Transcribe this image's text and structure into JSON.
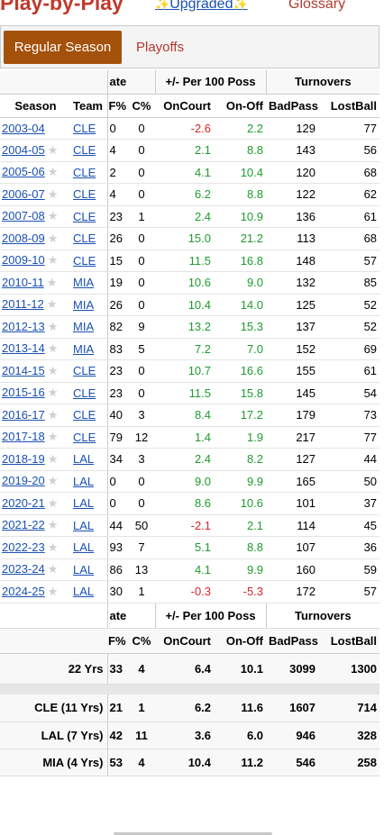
{
  "header": {
    "title": "Play-by-Play",
    "upgraded": "Upgraded",
    "upgraded_spark": "✨",
    "glossary": "Glossary"
  },
  "tabs": {
    "regular": "Regular Season",
    "playoffs": "Playoffs"
  },
  "groups": {
    "rate": "ate",
    "plusminus": "+/- Per 100 Poss",
    "turnovers": "Turnovers"
  },
  "columns": {
    "season": "Season",
    "team": "Team",
    "f_pct": "F%",
    "c_pct": "C%",
    "on_court": "OnCourt",
    "on_off": "On-Off",
    "bad_pass": "BadPass",
    "lost_ball": "LostBall"
  },
  "rows": [
    {
      "season": "2003-04",
      "star": false,
      "team": "CLE",
      "f": "0",
      "c": "0",
      "on": "-2.6",
      "onoff": "2.2",
      "bp": "129",
      "lb": "77"
    },
    {
      "season": "2004-05",
      "star": true,
      "team": "CLE",
      "f": "4",
      "c": "0",
      "on": "2.1",
      "onoff": "8.8",
      "bp": "143",
      "lb": "56"
    },
    {
      "season": "2005-06",
      "star": true,
      "team": "CLE",
      "f": "2",
      "c": "0",
      "on": "4.1",
      "onoff": "10.4",
      "bp": "120",
      "lb": "68"
    },
    {
      "season": "2006-07",
      "star": true,
      "team": "CLE",
      "f": "4",
      "c": "0",
      "on": "6.2",
      "onoff": "8.8",
      "bp": "122",
      "lb": "62"
    },
    {
      "season": "2007-08",
      "star": true,
      "team": "CLE",
      "f": "23",
      "c": "1",
      "on": "2.4",
      "onoff": "10.9",
      "bp": "136",
      "lb": "61"
    },
    {
      "season": "2008-09",
      "star": true,
      "team": "CLE",
      "f": "26",
      "c": "0",
      "on": "15.0",
      "onoff": "21.2",
      "bp": "113",
      "lb": "68"
    },
    {
      "season": "2009-10",
      "star": true,
      "team": "CLE",
      "f": "15",
      "c": "0",
      "on": "11.5",
      "onoff": "16.8",
      "bp": "148",
      "lb": "57"
    },
    {
      "season": "2010-11",
      "star": true,
      "team": "MIA",
      "f": "19",
      "c": "0",
      "on": "10.6",
      "onoff": "9.0",
      "bp": "132",
      "lb": "85"
    },
    {
      "season": "2011-12",
      "star": true,
      "team": "MIA",
      "f": "26",
      "c": "0",
      "on": "10.4",
      "onoff": "14.0",
      "bp": "125",
      "lb": "52"
    },
    {
      "season": "2012-13",
      "star": true,
      "team": "MIA",
      "f": "82",
      "c": "9",
      "on": "13.2",
      "onoff": "15.3",
      "bp": "137",
      "lb": "52"
    },
    {
      "season": "2013-14",
      "star": true,
      "team": "MIA",
      "f": "83",
      "c": "5",
      "on": "7.2",
      "onoff": "7.0",
      "bp": "152",
      "lb": "69"
    },
    {
      "season": "2014-15",
      "star": true,
      "team": "CLE",
      "f": "23",
      "c": "0",
      "on": "10.7",
      "onoff": "16.6",
      "bp": "155",
      "lb": "61"
    },
    {
      "season": "2015-16",
      "star": true,
      "team": "CLE",
      "f": "23",
      "c": "0",
      "on": "11.5",
      "onoff": "15.8",
      "bp": "145",
      "lb": "54"
    },
    {
      "season": "2016-17",
      "star": true,
      "team": "CLE",
      "f": "40",
      "c": "3",
      "on": "8.4",
      "onoff": "17.2",
      "bp": "179",
      "lb": "73"
    },
    {
      "season": "2017-18",
      "star": true,
      "team": "CLE",
      "f": "79",
      "c": "12",
      "on": "1.4",
      "onoff": "1.9",
      "bp": "217",
      "lb": "77"
    },
    {
      "season": "2018-19",
      "star": true,
      "team": "LAL",
      "f": "34",
      "c": "3",
      "on": "2.4",
      "onoff": "8.2",
      "bp": "127",
      "lb": "44"
    },
    {
      "season": "2019-20",
      "star": true,
      "team": "LAL",
      "f": "0",
      "c": "0",
      "on": "9.0",
      "onoff": "9.9",
      "bp": "165",
      "lb": "50"
    },
    {
      "season": "2020-21",
      "star": true,
      "team": "LAL",
      "f": "0",
      "c": "0",
      "on": "8.6",
      "onoff": "10.6",
      "bp": "101",
      "lb": "37"
    },
    {
      "season": "2021-22",
      "star": true,
      "team": "LAL",
      "f": "44",
      "c": "50",
      "on": "-2.1",
      "onoff": "2.1",
      "bp": "114",
      "lb": "45"
    },
    {
      "season": "2022-23",
      "star": true,
      "team": "LAL",
      "f": "93",
      "c": "7",
      "on": "5.1",
      "onoff": "8.8",
      "bp": "107",
      "lb": "36"
    },
    {
      "season": "2023-24",
      "star": true,
      "team": "LAL",
      "f": "86",
      "c": "13",
      "on": "4.1",
      "onoff": "9.9",
      "bp": "160",
      "lb": "59"
    },
    {
      "season": "2024-25",
      "star": true,
      "team": "LAL",
      "f": "30",
      "c": "1",
      "on": "-0.3",
      "onoff": "-5.3",
      "bp": "172",
      "lb": "57"
    }
  ],
  "star_glyph": "★",
  "totals": {
    "label": "22 Yrs",
    "f": "33",
    "c": "4",
    "on": "6.4",
    "onoff": "10.1",
    "bp": "3099",
    "lb": "1300"
  },
  "splits": [
    {
      "label": "CLE (11 Yrs)",
      "f": "21",
      "c": "1",
      "on": "6.2",
      "onoff": "11.6",
      "bp": "1607",
      "lb": "714"
    },
    {
      "label": "LAL (7 Yrs)",
      "f": "42",
      "c": "11",
      "on": "3.6",
      "onoff": "6.0",
      "bp": "946",
      "lb": "328"
    },
    {
      "label": "MIA (4 Yrs)",
      "f": "53",
      "c": "4",
      "on": "10.4",
      "onoff": "11.2",
      "bp": "546",
      "lb": "258"
    }
  ],
  "colors": {
    "positive": "#1e9c2e",
    "negative": "#d9242b",
    "accent": "#a4510b",
    "link": "#1a50b3"
  }
}
